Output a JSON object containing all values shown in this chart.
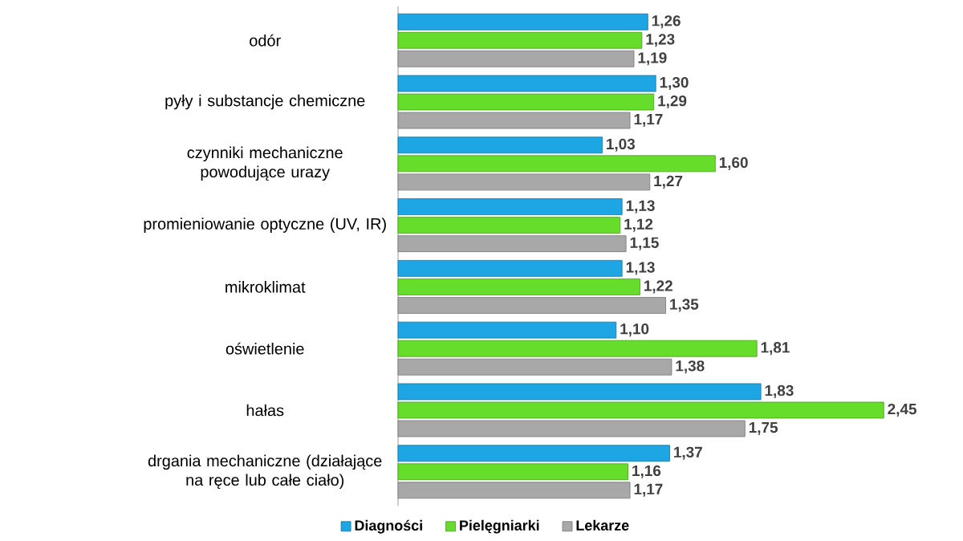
{
  "chart_data": {
    "type": "bar",
    "orientation": "horizontal",
    "legend": "bottom",
    "categories": [
      "odór",
      "pyły i substancje chemiczne",
      "czynniki mechaniczne powodujące urazy",
      "promieniowanie optyczne (UV, IR)",
      "mikroklimat",
      "oświetlenie",
      "hałas",
      "drgania mechaniczne (działające na ręce lub całe ciało)"
    ],
    "series": [
      {
        "name": "Diagności",
        "color": "#1ea5e3",
        "values": [
          1.26,
          1.3,
          1.03,
          1.13,
          1.13,
          1.1,
          1.83,
          1.37
        ],
        "value_labels": [
          "1,26",
          "1,30",
          "1,03",
          "1,13",
          "1,13",
          "1,10",
          "1,83",
          "1,37"
        ]
      },
      {
        "name": "Pielęgniarki",
        "color": "#66dd2a",
        "values": [
          1.23,
          1.29,
          1.6,
          1.12,
          1.22,
          1.81,
          2.45,
          1.16
        ],
        "value_labels": [
          "1,23",
          "1,29",
          "1,60",
          "1,12",
          "1,22",
          "1,81",
          "2,45",
          "1,16"
        ]
      },
      {
        "name": "Lekarze",
        "color": "#a8a8a8",
        "values": [
          1.19,
          1.17,
          1.27,
          1.15,
          1.35,
          1.38,
          1.75,
          1.17
        ],
        "value_labels": [
          "1,19",
          "1,17",
          "1,27",
          "1,15",
          "1,35",
          "1,38",
          "1,75",
          "1,17"
        ]
      }
    ]
  }
}
